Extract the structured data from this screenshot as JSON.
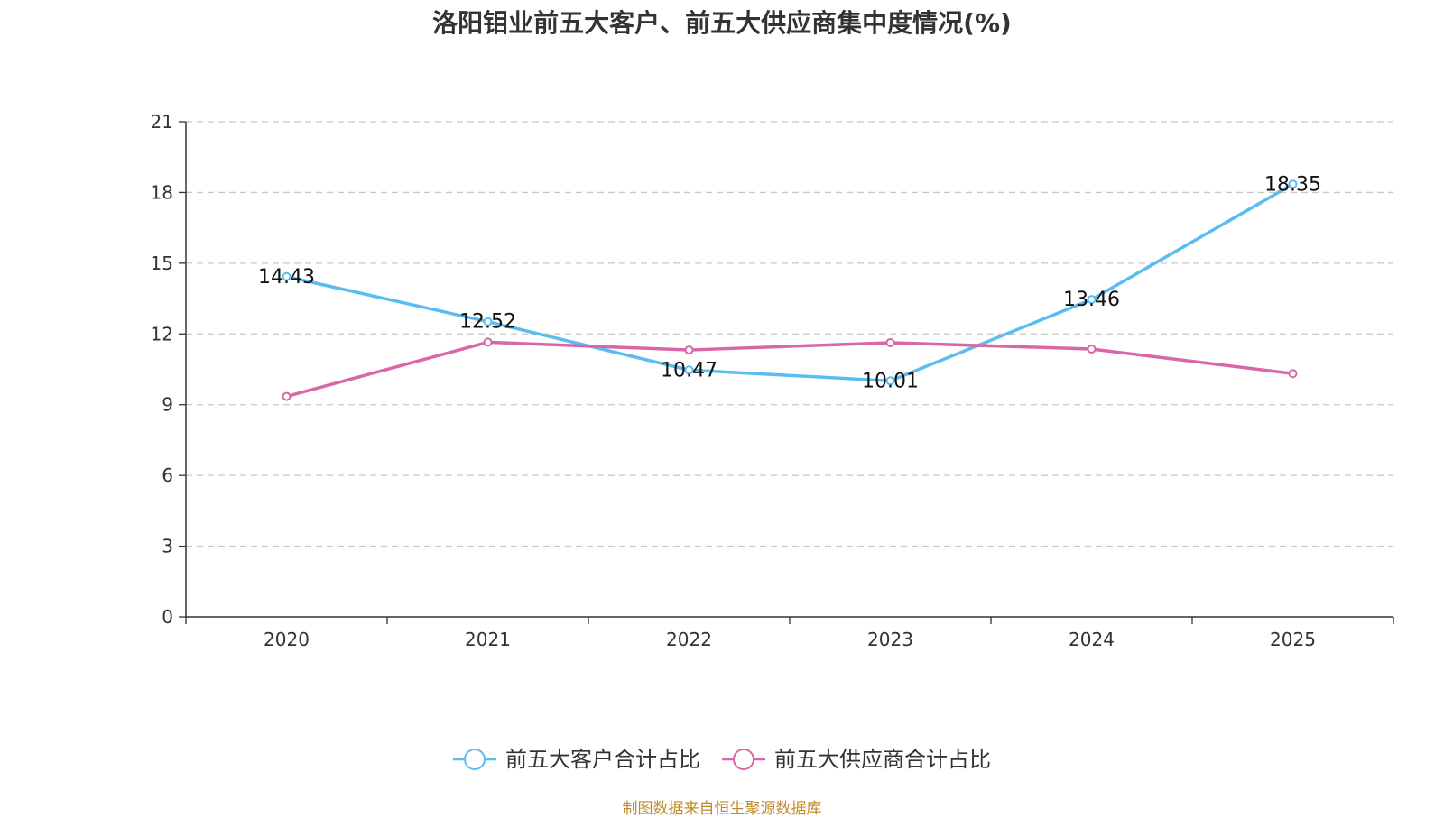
{
  "chart_data": {
    "type": "line",
    "title": "洛阳钼业前五大客户、前五大供应商集中度情况(%)",
    "categories": [
      "2020",
      "2021",
      "2022",
      "2023",
      "2024",
      "2025"
    ],
    "ylim": [
      0,
      21
    ],
    "yticks": [
      0,
      3,
      6,
      9,
      12,
      15,
      18,
      21
    ],
    "xlabel": "",
    "ylabel": "",
    "grid": "horizontal dashed",
    "legend_position": "bottom-center",
    "series": [
      {
        "name": "前五大客户合计占比",
        "color": "#5bbcf0",
        "values": [
          14.43,
          12.52,
          10.47,
          10.01,
          13.46,
          18.35
        ],
        "labels": [
          "14.43",
          "12.52",
          "10.47",
          "10.01",
          "13.46",
          "18.35"
        ]
      },
      {
        "name": "前五大供应商合计占比",
        "color": "#d966a8",
        "values": [
          9.35,
          11.65,
          11.32,
          11.63,
          11.36,
          10.32
        ],
        "labels": []
      }
    ]
  },
  "footer": {
    "source": "制图数据来自恒生聚源数据库"
  }
}
